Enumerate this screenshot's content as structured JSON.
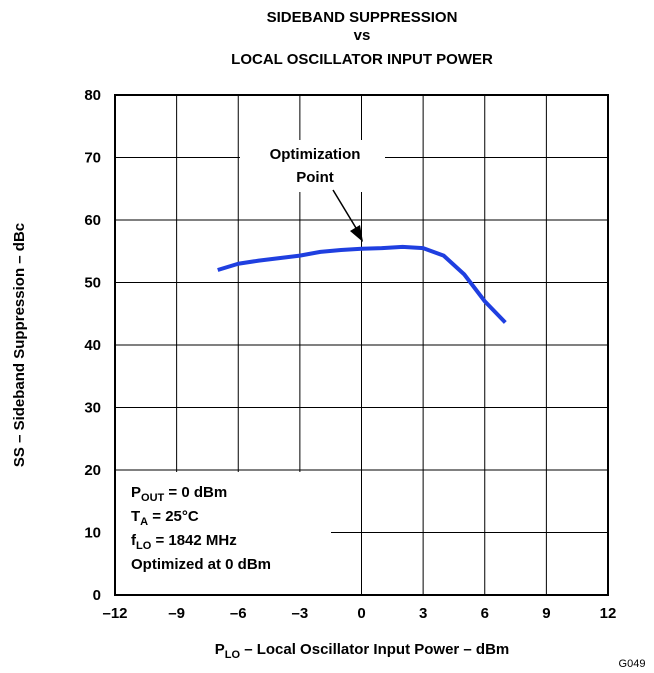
{
  "chart_data": {
    "type": "line",
    "title": [
      "SIDEBAND SUPPRESSION",
      "vs",
      "LOCAL OSCILLATOR INPUT POWER"
    ],
    "x_label": [
      "P",
      "LO",
      " – Local Oscillator Input Power – dBm"
    ],
    "y_label": "SS – Sideband Suppression – dBc",
    "figure_id": "G049",
    "x": [
      -7,
      -6,
      -5,
      -4,
      -3,
      -2,
      -1,
      0,
      1,
      2,
      3,
      4,
      5,
      6,
      7
    ],
    "series": [
      {
        "color": "#1f3fe0",
        "values": [
          52,
          53,
          53.5,
          53.9,
          54.3,
          54.9,
          55.2,
          55.4,
          55.5,
          55.7,
          55.5,
          54.3,
          51.3,
          47,
          43.6
        ]
      }
    ],
    "xlim": [
      -12,
      12
    ],
    "xticks": [
      {
        "value": -12,
        "label": "–12"
      },
      {
        "value": -9,
        "label": "–9"
      },
      {
        "value": -6,
        "label": "–6"
      },
      {
        "value": -3,
        "label": "–3"
      },
      0,
      3,
      6,
      9,
      12
    ],
    "ylim": [
      0,
      80
    ],
    "yticks": [
      0,
      10,
      20,
      30,
      40,
      50,
      60,
      70,
      80
    ],
    "grid": true,
    "annotation": [
      "Optimization",
      "Point"
    ],
    "conditions": [
      [
        "P",
        "OUT",
        " = 0 dBm"
      ],
      [
        "T",
        "A",
        " = 25°C"
      ],
      [
        "f",
        "LO",
        " = 1842 MHz"
      ],
      [
        "Optimized at 0 dBm"
      ]
    ]
  }
}
